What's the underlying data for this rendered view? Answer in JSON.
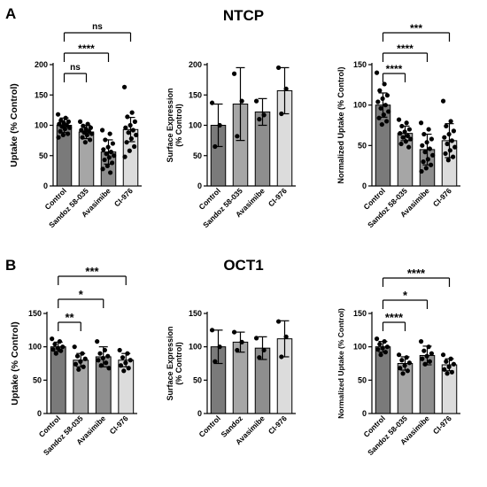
{
  "panels": {
    "A": "A",
    "B": "B"
  },
  "row_titles": {
    "top": "NTCP",
    "bottom": "OCT1"
  },
  "colors": {
    "bars": [
      "#7a7a7a",
      "#a6a6a6",
      "#8e8e8e",
      "#dcdcdc"
    ],
    "outline": "#000000",
    "dots": "#000000"
  },
  "chart_data": [
    {
      "type": "bar",
      "row": "top",
      "ylabel": "Uptake (% Control)",
      "categories": [
        "Control",
        "Sandoz 58-035",
        "Avasimibe",
        "CI-976"
      ],
      "values": [
        100,
        89,
        56,
        93
      ],
      "errors": [
        [
          12,
          12
        ],
        [
          11,
          11
        ],
        [
          20,
          20
        ],
        [
          20,
          20
        ]
      ],
      "ylim": [
        0,
        200
      ],
      "yticks": [
        0,
        50,
        100,
        150,
        200
      ],
      "points": [
        [
          118,
          112,
          108,
          106,
          104,
          102,
          100,
          98,
          96,
          94,
          90,
          86,
          84,
          80
        ],
        [
          106,
          102,
          99,
          96,
          94,
          92,
          90,
          88,
          86,
          84,
          80,
          76,
          72
        ],
        [
          92,
          86,
          76,
          70,
          64,
          60,
          56,
          53,
          50,
          47,
          43,
          38,
          33,
          28,
          22
        ],
        [
          163,
          121,
          114,
          106,
          100,
          96,
          92,
          88,
          84,
          78,
          72,
          65,
          58,
          48
        ]
      ],
      "significance": [
        {
          "from": 0,
          "to": 1,
          "label": "ns",
          "level": 1
        },
        {
          "from": 0,
          "to": 2,
          "label": "****",
          "level": 2
        },
        {
          "from": 0,
          "to": 3,
          "label": "ns",
          "level": 3
        }
      ]
    },
    {
      "type": "bar",
      "row": "top",
      "ylabel": "Surface Expression\n(% Control)",
      "categories": [
        "Control",
        "Sandoz 58-035",
        "Avasimibe",
        "CI-976"
      ],
      "values": [
        100,
        135,
        122,
        157
      ],
      "errors": [
        [
          35,
          35
        ],
        [
          60,
          60
        ],
        [
          22,
          22
        ],
        [
          38,
          38
        ]
      ],
      "ylim": [
        0,
        200
      ],
      "yticks": [
        0,
        50,
        100,
        150,
        200
      ],
      "points": [
        [
          137,
          100,
          65
        ],
        [
          185,
          140,
          82
        ],
        [
          140,
          117,
          110
        ],
        [
          195,
          160,
          119
        ]
      ],
      "significance": []
    },
    {
      "type": "bar",
      "row": "top",
      "ylabel": "Normalized Uptake (% Control)",
      "categories": [
        "Control",
        "Sandoz 58-035",
        "Avasimibe",
        "CI-976"
      ],
      "values": [
        100,
        65,
        45,
        56
      ],
      "errors": [
        [
          15,
          15
        ],
        [
          9,
          9
        ],
        [
          19,
          19
        ],
        [
          21,
          21
        ]
      ],
      "ylim": [
        0,
        150
      ],
      "yticks": [
        0,
        50,
        100,
        150
      ],
      "points": [
        [
          140,
          126,
          118,
          112,
          108,
          104,
          100,
          96,
          92,
          88,
          84,
          80,
          76
        ],
        [
          82,
          78,
          74,
          70,
          67,
          65,
          62,
          60,
          58,
          55,
          52,
          48
        ],
        [
          78,
          70,
          64,
          58,
          54,
          50,
          46,
          42,
          38,
          33,
          30,
          26,
          22,
          18
        ],
        [
          105,
          80,
          74,
          68,
          64,
          60,
          56,
          52,
          48,
          44,
          40,
          36,
          32
        ]
      ],
      "significance": [
        {
          "from": 0,
          "to": 1,
          "label": "****",
          "level": 1
        },
        {
          "from": 0,
          "to": 2,
          "label": "****",
          "level": 2
        },
        {
          "from": 0,
          "to": 3,
          "label": "***",
          "level": 3
        }
      ]
    },
    {
      "type": "bar",
      "row": "bottom",
      "ylabel": "Uptake (% Control)",
      "categories": [
        "Control",
        "Sandoz 58-035",
        "Avasimibe",
        "CI-976"
      ],
      "values": [
        100,
        80,
        85,
        80
      ],
      "errors": [
        [
          7,
          7
        ],
        [
          10,
          10
        ],
        [
          15,
          15
        ],
        [
          10,
          10
        ]
      ],
      "ylim": [
        0,
        150
      ],
      "yticks": [
        0,
        50,
        100,
        150
      ],
      "points": [
        [
          112,
          108,
          104,
          100,
          98,
          96,
          94,
          90
        ],
        [
          100,
          90,
          86,
          82,
          78,
          74,
          70,
          66
        ],
        [
          108,
          95,
          90,
          86,
          83,
          80,
          76,
          72,
          68
        ],
        [
          95,
          90,
          84,
          80,
          76,
          72,
          68,
          64
        ]
      ],
      "significance": [
        {
          "from": 0,
          "to": 1,
          "label": "**",
          "level": 1
        },
        {
          "from": 0,
          "to": 2,
          "label": "*",
          "level": 2
        },
        {
          "from": 0,
          "to": 3,
          "label": "***",
          "level": 3
        }
      ]
    },
    {
      "type": "bar",
      "row": "bottom",
      "ylabel": "Surface Expression\n(% Control)",
      "categories": [
        "Control",
        "Sandoz",
        "Avasimibe",
        "CI-976"
      ],
      "values": [
        100,
        107,
        98,
        112
      ],
      "errors": [
        [
          25,
          25
        ],
        [
          15,
          15
        ],
        [
          17,
          17
        ],
        [
          27,
          27
        ]
      ],
      "ylim": [
        0,
        150
      ],
      "yticks": [
        0,
        50,
        100,
        150
      ],
      "points": [
        [
          125,
          100,
          78
        ],
        [
          122,
          107,
          95
        ],
        [
          113,
          95,
          84
        ],
        [
          138,
          115,
          85
        ]
      ],
      "significance": []
    },
    {
      "type": "bar",
      "row": "bottom",
      "ylabel": "Normalized Uptake (% Control)",
      "categories": [
        "Control",
        "Sandoz 58-035",
        "Avasimibe",
        "CI-976"
      ],
      "values": [
        100,
        75,
        87,
        73
      ],
      "errors": [
        [
          8,
          8
        ],
        [
          10,
          10
        ],
        [
          14,
          14
        ],
        [
          9,
          9
        ]
      ],
      "ylim": [
        0,
        150
      ],
      "yticks": [
        0,
        50,
        100,
        150
      ],
      "points": [
        [
          112,
          108,
          104,
          100,
          98,
          96,
          92,
          88
        ],
        [
          88,
          84,
          80,
          76,
          72,
          68,
          64,
          60
        ],
        [
          108,
          100,
          94,
          90,
          86,
          82,
          78,
          74
        ],
        [
          88,
          82,
          78,
          74,
          70,
          66,
          62,
          60
        ]
      ],
      "significance": [
        {
          "from": 0,
          "to": 1,
          "label": "****",
          "level": 1
        },
        {
          "from": 0,
          "to": 2,
          "label": "*",
          "level": 2
        },
        {
          "from": 0,
          "to": 3,
          "label": "****",
          "level": 3
        }
      ]
    }
  ]
}
